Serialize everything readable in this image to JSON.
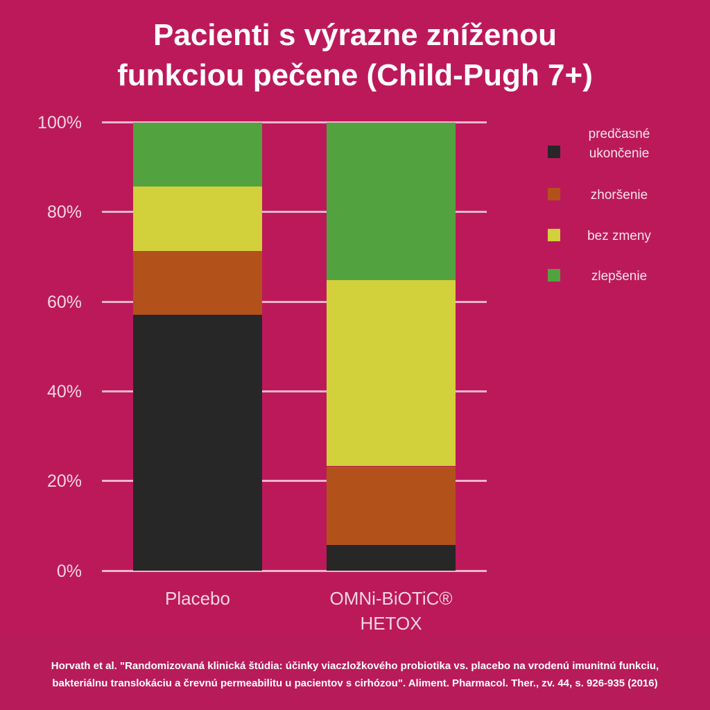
{
  "title": {
    "line1": "Pacienti s výrazne zníženou",
    "line2": "funkciou pečene (Child-Pugh 7+)"
  },
  "y_axis": {
    "ticks": [
      "100%",
      "80%",
      "60%",
      "40%",
      "20%",
      "0%"
    ]
  },
  "x_axis": {
    "categories": [
      {
        "line1": "Placebo",
        "line2": ""
      },
      {
        "line1": "OMNi-BiOTiC®",
        "line2": "HETOX"
      }
    ]
  },
  "legend": [
    {
      "line1": "predčasné",
      "line2": "ukončenie",
      "color": "#272727"
    },
    {
      "line1": "zhoršenie",
      "line2": "",
      "color": "#b3511b"
    },
    {
      "line1": "bez zmeny",
      "line2": "",
      "color": "#d2d03b"
    },
    {
      "line1": "zlepšenie",
      "line2": "",
      "color": "#52a33f"
    }
  ],
  "colors": {
    "background": "#bc195b",
    "gridline": "#eab6ca",
    "predcasne_ukoncenie": "#272727",
    "zhorsenie": "#b3511b",
    "bez_zmeny": "#d2d03b",
    "zlepsenie": "#52a33f"
  },
  "citation": {
    "line1": "Horvath et al. \"Randomizovaná klinická štúdia: účinky viaczložkového probiotika vs. placebo na vrodenú imunitnú funkciu,",
    "line2": "bakteriálnu translokáciu a črevnú permeabilitu u pacientov s cirhózou\". Aliment. Pharmacol. Ther., zv. 44, s. 926-935 (2016)"
  },
  "chart_data": {
    "type": "bar",
    "stacked": true,
    "title": "Pacienti s výrazne zníženou funkciou pečene (Child-Pugh 7+)",
    "xlabel": "",
    "ylabel": "",
    "categories": [
      "Placebo",
      "OMNi-BiOTiC® HETOX"
    ],
    "series": [
      {
        "name": "predčasné ukončenie",
        "color": "#272727",
        "values": [
          57.1,
          5.7
        ]
      },
      {
        "name": "zhoršenie",
        "color": "#b3511b",
        "values": [
          14.3,
          17.6
        ]
      },
      {
        "name": "bez zmeny",
        "color": "#d2d03b",
        "values": [
          14.3,
          41.5
        ]
      },
      {
        "name": "zlepšenie",
        "color": "#52a33f",
        "values": [
          14.3,
          35.2
        ]
      }
    ],
    "ylim": [
      0,
      100
    ],
    "yticks": [
      0,
      20,
      40,
      60,
      80,
      100
    ],
    "ytick_format": "percent",
    "grid": true,
    "legend_position": "right"
  }
}
